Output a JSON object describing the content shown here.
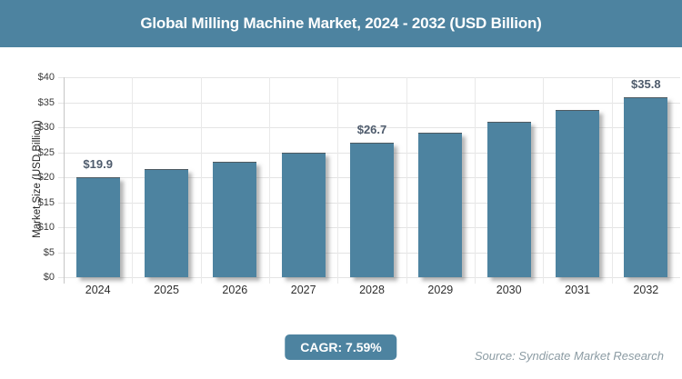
{
  "title_bar": {
    "title": "Global Milling Machine Market, 2024 - 2032 (USD Billion)"
  },
  "chart_data": {
    "type": "bar",
    "title": "Global Milling Machine Market, 2024 - 2032 (USD Billion)",
    "categories": [
      "2024",
      "2025",
      "2026",
      "2027",
      "2028",
      "2029",
      "2030",
      "2031",
      "2032"
    ],
    "values": [
      19.9,
      21.4,
      23.0,
      24.8,
      26.7,
      28.7,
      30.9,
      33.2,
      35.8
    ],
    "data_labels": [
      "$19.9",
      "",
      "",
      "",
      "$26.7",
      "",
      "",
      "",
      "$35.8"
    ],
    "xlabel": "",
    "ylabel": "Market Size (USD Billion)",
    "ylim": [
      0,
      40
    ],
    "ytick_step": 5,
    "ytick_labels": [
      "$0",
      "$5",
      "$10",
      "$15",
      "$20",
      "$25",
      "$30",
      "$35",
      "$40"
    ],
    "grid": true,
    "legend": false,
    "bar_color": "#4d83a0"
  },
  "footer": {
    "cagr_label": "CAGR: 7.59%",
    "source": "Source: Syndicate Market Research"
  },
  "colors": {
    "accent_teal": "#4d83a0",
    "title_text": "#ffffff",
    "gridline": "#e4e4e4",
    "axis_line": "#c6c6c6",
    "tick_label": "#3a3a3a",
    "data_label": "#4e5b6c",
    "source_text": "#8c9ca4"
  }
}
